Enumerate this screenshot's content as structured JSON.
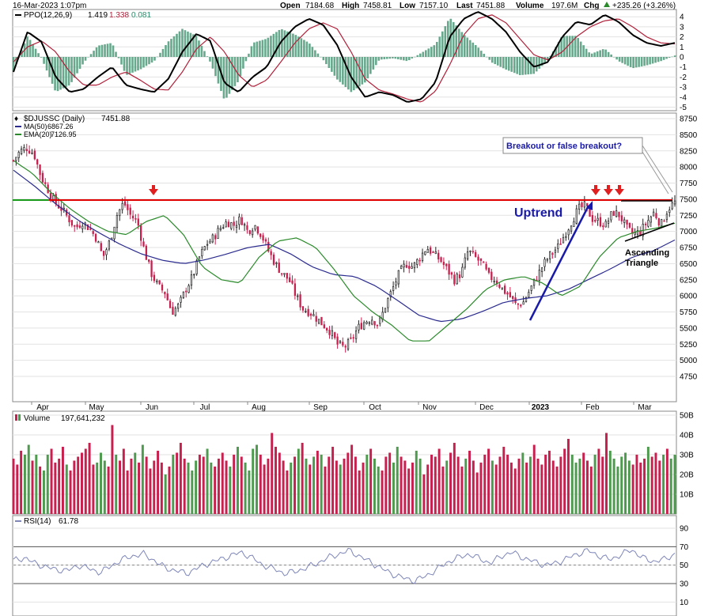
{
  "header": {
    "timestamp": "16-Mar-2023 1:07pm",
    "open_label": "Open",
    "open": "7184.68",
    "high_label": "High",
    "high": "7458.81",
    "low_label": "Low",
    "low": "7157.10",
    "last_label": "Last",
    "last": "7451.88",
    "volume_label": "Volume",
    "volume": "197.6M",
    "chg_label": "Chg",
    "chg": "+235.26 (+3.26%)",
    "chg_icon": "triangle-up"
  },
  "colors": {
    "up": "#4e9a4e",
    "down": "#c8204e",
    "ma50": "#2b2b8f",
    "ema20": "#2a8a2a",
    "resistance": "#e00000",
    "support_start": "#1a9a1a",
    "ppo": "#000000",
    "ppo_signal": "#b0203a",
    "histogram": "#4e9a7a",
    "rsi": "#7e86b8",
    "annotation": "#1a1aa8",
    "arrow": "#e02020",
    "grid": "#e2e2e2"
  },
  "chart_data": [
    {
      "type": "line",
      "panel": "PPO",
      "legend": {
        "label": "PPO(12,26,9)",
        "value_ppo": "1.419",
        "value_signal": "1.338",
        "value_hist": "0.081"
      },
      "ylim": [
        -5,
        4
      ],
      "y_ticks": [
        "4",
        "3",
        "2",
        "1",
        "0",
        "-1",
        "-2",
        "-3",
        "-4",
        "-5"
      ],
      "series": [
        {
          "name": "PPO",
          "values": [
            -1.5,
            2.5,
            1.5,
            -2.0,
            -3.5,
            -3.2,
            -2.0,
            -1.0,
            -2.8,
            -3.2,
            -3.5,
            -2.2,
            0.5,
            2.3,
            1.6,
            -2.6,
            -3.5,
            -2.0,
            -1.0,
            1.5,
            3.0,
            3.8,
            3.2,
            1.2,
            -2.0,
            -4.0,
            -3.5,
            -3.8,
            -4.5,
            -4.2,
            -2.5,
            2.0,
            3.8,
            4.5,
            3.8,
            2.5,
            0.5,
            -1.0,
            -0.5,
            2.0,
            3.5,
            3.2,
            4.2,
            3.5,
            2.2,
            1.4,
            1.1,
            1.4
          ]
        },
        {
          "name": "Signal",
          "values": [
            -0.5,
            1.0,
            1.6,
            0.5,
            -1.5,
            -2.8,
            -2.8,
            -2.0,
            -1.5,
            -2.3,
            -3.2,
            -3.3,
            -1.5,
            0.8,
            2.0,
            0.5,
            -1.8,
            -3.0,
            -2.3,
            -0.5,
            1.4,
            2.8,
            3.4,
            2.8,
            0.5,
            -2.2,
            -3.3,
            -3.7,
            -4.2,
            -4.5,
            -3.4,
            -0.8,
            2.2,
            3.8,
            4.2,
            3.4,
            1.8,
            0.2,
            -0.3,
            0.5,
            2.0,
            3.0,
            3.6,
            3.8,
            3.0,
            2.0,
            1.4,
            1.3
          ]
        }
      ]
    },
    {
      "type": "line",
      "panel": "Price",
      "title": "$DJUSSC (Daily) 7451.88",
      "legend": [
        {
          "label": "$DJUSSC (Daily)",
          "value": "7451.88"
        },
        {
          "label": "MA(50)",
          "value": "6867.26"
        },
        {
          "label": "EMA(20)",
          "value": "7126.95"
        }
      ],
      "ylim": [
        4600,
        8800
      ],
      "y_ticks": [
        "8750",
        "8500",
        "8250",
        "8000",
        "7750",
        "7500",
        "7250",
        "7000",
        "6750",
        "6500",
        "6250",
        "6000",
        "5750",
        "5500",
        "5250",
        "5000",
        "4750"
      ],
      "x_labels": [
        "Apr",
        "May",
        "Jun",
        "Jul",
        "Aug",
        "Sep",
        "Oct",
        "Nov",
        "Dec",
        "2023",
        "Feb",
        "Mar"
      ],
      "series": [
        {
          "name": "$DJUSSC",
          "values": [
            8100,
            8250,
            8300,
            8200,
            7850,
            7650,
            7450,
            7350,
            7200,
            7050,
            7150,
            7050,
            6900,
            6600,
            6850,
            7250,
            7450,
            7250,
            7150,
            6700,
            6350,
            6150,
            6050,
            5750,
            5850,
            6100,
            6300,
            6600,
            6800,
            6900,
            7050,
            7150,
            7100,
            7200,
            7000,
            7100,
            6950,
            6700,
            6500,
            6350,
            6250,
            6000,
            5800,
            5750,
            5650,
            5550,
            5450,
            5250,
            5200,
            5300,
            5500,
            5600,
            5650,
            5550,
            5850,
            6100,
            6350,
            6500,
            6450,
            6600,
            6750,
            6650,
            6550,
            6400,
            6250,
            6350,
            6700,
            6600,
            6500,
            6300,
            6250,
            6100,
            6000,
            5850,
            5900,
            6100,
            6300,
            6500,
            6650,
            6750,
            6950,
            7150,
            7350,
            7400,
            7200,
            7150,
            7100,
            7300,
            7250,
            7050,
            6950,
            7000,
            7150,
            7300,
            7100,
            7350,
            7452
          ]
        },
        {
          "name": "MA(50)",
          "values": [
            7950,
            7700,
            7420,
            7180,
            6980,
            6800,
            6650,
            6550,
            6500,
            6560,
            6650,
            6750,
            6800,
            6650,
            6450,
            6330,
            6300,
            6150,
            5930,
            5700,
            5600,
            5640,
            5760,
            5900,
            5960,
            6000,
            6100,
            6260,
            6420,
            6600,
            6700,
            6867
          ]
        },
        {
          "name": "EMA(20)",
          "values": [
            8100,
            7900,
            7600,
            7350,
            7150,
            7000,
            6950,
            7150,
            7250,
            6950,
            6450,
            6250,
            6200,
            6600,
            6850,
            6900,
            6750,
            6400,
            6000,
            5750,
            5550,
            5300,
            5300,
            5550,
            5800,
            6100,
            6250,
            6300,
            6200,
            6000,
            6150,
            6600,
            6900,
            7000,
            7050,
            7127
          ]
        }
      ],
      "resistance_level": 7330,
      "annotations": [
        {
          "text": "Breakout or false breakout?"
        },
        {
          "text": "Uptrend"
        },
        {
          "text": "Ascending"
        },
        {
          "text": "Triangle"
        }
      ]
    },
    {
      "type": "bar",
      "panel": "Volume",
      "legend": {
        "label": "Volume",
        "value": "197,641,232"
      },
      "ylim": [
        0,
        50
      ],
      "y_ticks": [
        "50B",
        "40B",
        "30B",
        "20B",
        "10B"
      ],
      "values": [
        28,
        25,
        32,
        30,
        35,
        27,
        30,
        24,
        22,
        30,
        33,
        26,
        28,
        34,
        25,
        22,
        27,
        29,
        31,
        33,
        36,
        25,
        26,
        31,
        27,
        24,
        45,
        30,
        27,
        33,
        22,
        28,
        31,
        26,
        35,
        29,
        23,
        27,
        32,
        26,
        20,
        24,
        30,
        31,
        36,
        28,
        26,
        22,
        27,
        30,
        29,
        33,
        26,
        24,
        28,
        31,
        27,
        24,
        30,
        34,
        29,
        26,
        22,
        33,
        35,
        30,
        25,
        28,
        41,
        34,
        31,
        27,
        22,
        26,
        29,
        33,
        36,
        28,
        25,
        29,
        32,
        30,
        24,
        29,
        34,
        27,
        25,
        28,
        31,
        35,
        29,
        22,
        26,
        30,
        33,
        28,
        24,
        22,
        29,
        31,
        26,
        34,
        29,
        27,
        23,
        26,
        32,
        28,
        20,
        25,
        30,
        29,
        33,
        24,
        27,
        31,
        36,
        29,
        24,
        28,
        32,
        27,
        21,
        26,
        30,
        33,
        27,
        25,
        29,
        34,
        30,
        26,
        23,
        28,
        31,
        26,
        29,
        35,
        28,
        25,
        30,
        32,
        27,
        24,
        29,
        33,
        38,
        30,
        26,
        28,
        31,
        27,
        24,
        30,
        33,
        29,
        41,
        32,
        28,
        24,
        29,
        31,
        27,
        25,
        30,
        26,
        28,
        34,
        29,
        31,
        27,
        30,
        33,
        28,
        30
      ]
    },
    {
      "type": "line",
      "panel": "RSI",
      "legend": {
        "label": "RSI(14)",
        "value": "61.78"
      },
      "ylim": [
        10,
        100
      ],
      "y_ticks": [
        "90",
        "70",
        "50",
        "30",
        "10"
      ],
      "series": [
        {
          "name": "RSI(14)",
          "values": [
            55,
            58,
            52,
            48,
            45,
            44,
            50,
            46,
            42,
            49,
            56,
            60,
            62,
            55,
            47,
            44,
            41,
            47,
            52,
            56,
            60,
            64,
            58,
            50,
            46,
            41,
            43,
            47,
            52,
            58,
            62,
            66,
            59,
            53,
            46,
            40,
            36,
            33,
            38,
            45,
            53,
            58,
            62,
            57,
            52,
            60,
            64,
            58,
            54,
            50,
            52,
            57,
            62,
            66,
            60,
            56,
            61,
            67,
            58,
            54,
            56,
            62
          ]
        }
      ]
    }
  ]
}
